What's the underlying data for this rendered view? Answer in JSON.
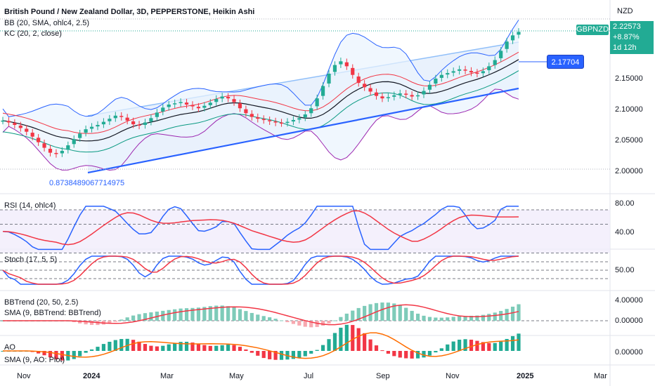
{
  "chart_title": "British Pound / New Zealand Dollar, 3D, PEPPERSTONE, Heikin Ashi",
  "currency": "NZD",
  "indicators": {
    "bb": "BB (20, SMA, ohlc4, 2.5)",
    "kc": "KC (20, 2, close)",
    "rsi": "RSI (14, ohlc4)",
    "stoch": "Stoch (17, 5, 5)",
    "bbtrend": "BBTrend (20, 50, 2.5)",
    "bbtrend_sma": "SMA (9, BBTrend: BBTrend)",
    "ao": "AO",
    "ao_sma": "SMA (9, AO: Plot)"
  },
  "symbol_tag": "GBPNZD",
  "last_price": "2.22573",
  "change_pct": "+8.87%",
  "countdown": "1d 12h",
  "price_line_label": "2.17704",
  "fib_label": "0.8738489067714975",
  "price_axis": [
    "2.15000",
    "2.10000",
    "2.05000",
    "2.00000"
  ],
  "rsi_axis": [
    "80.00",
    "40.00"
  ],
  "stoch_axis": [
    "50.00"
  ],
  "bbtrend_axis": [
    "4.00000",
    "0.00000"
  ],
  "ao_axis": [
    "0.00000"
  ],
  "time_axis": [
    "Nov",
    "2024",
    "Mar",
    "May",
    "Jul",
    "Sep",
    "Nov",
    "2025",
    "Mar"
  ],
  "colors": {
    "up": "#22ab94",
    "down": "#f23645",
    "bb_line": "#2962ff",
    "kc_upper": "#f23645",
    "kc_lower": "#089981",
    "trend": "#2962ff",
    "rsi": "#2962ff",
    "rsi_ma": "#f23645",
    "stoch_k": "#2962ff",
    "stoch_d": "#f23645"
  },
  "chart_data": {
    "type": "line",
    "price_series": [
      2.082,
      2.079,
      2.075,
      2.07,
      2.064,
      2.056,
      2.047,
      2.038,
      2.03,
      2.028,
      2.033,
      2.042,
      2.052,
      2.061,
      2.068,
      2.072,
      2.075,
      2.08,
      2.085,
      2.09,
      2.088,
      2.082,
      2.076,
      2.074,
      2.079,
      2.086,
      2.095,
      2.103,
      2.108,
      2.11,
      2.112,
      2.108,
      2.105,
      2.102,
      2.106,
      2.111,
      2.117,
      2.121,
      2.118,
      2.112,
      2.102,
      2.094,
      2.088,
      2.085,
      2.083,
      2.081,
      2.079,
      2.078,
      2.08,
      2.083,
      2.086,
      2.092,
      2.102,
      2.118,
      2.138,
      2.158,
      2.172,
      2.178,
      2.17,
      2.156,
      2.143,
      2.136,
      2.129,
      2.122,
      2.118,
      2.12,
      2.123,
      2.126,
      2.124,
      2.121,
      2.123,
      2.13,
      2.14,
      2.15,
      2.156,
      2.159,
      2.162,
      2.165,
      2.163,
      2.16,
      2.158,
      2.162,
      2.17,
      2.18,
      2.195,
      2.21,
      2.22,
      2.2257
    ]
  }
}
